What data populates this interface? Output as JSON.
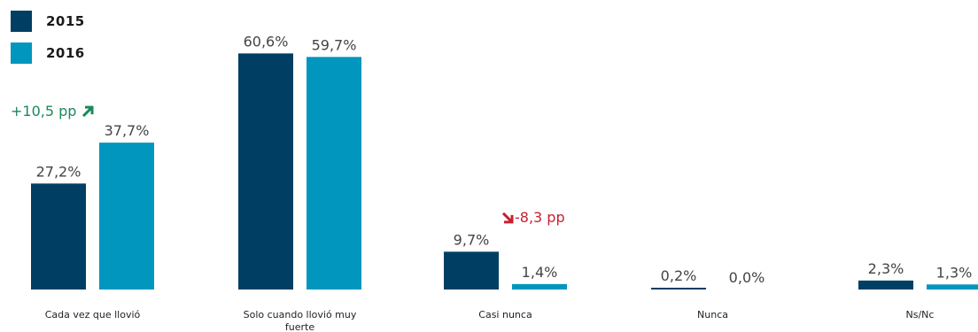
{
  "colors": {
    "y2015": "#003f63",
    "y2016": "#0096bd",
    "up": "#1a8a5a",
    "down": "#c8202f",
    "value_text": "#444444",
    "axis_text": "#222222"
  },
  "chart_data": {
    "type": "bar",
    "categories": [
      "Cada vez que llovió",
      "Solo cuando llovió muy fuerte",
      "Casi nunca",
      "Nunca",
      "Ns/Nc"
    ],
    "series": [
      {
        "name": "2015",
        "values": [
          27.2,
          60.6,
          9.7,
          0.2,
          2.3
        ],
        "labels": [
          "27,2%",
          "60,6%",
          "9,7%",
          "0,2%",
          "2,3%"
        ]
      },
      {
        "name": "2016",
        "values": [
          37.7,
          59.7,
          1.4,
          0.0,
          1.3
        ],
        "labels": [
          "37,7%",
          "59,7%",
          "1,4%",
          "0,0%",
          "1,3%"
        ]
      }
    ],
    "annotations": [
      {
        "category": "Cada vez que llovió",
        "text": "+10,5 pp",
        "direction": "up"
      },
      {
        "category": "Casi nunca",
        "text": "-8,3 pp",
        "direction": "down"
      }
    ],
    "ylim": [
      0,
      65
    ],
    "legend_position": "top-left",
    "grid": false
  }
}
